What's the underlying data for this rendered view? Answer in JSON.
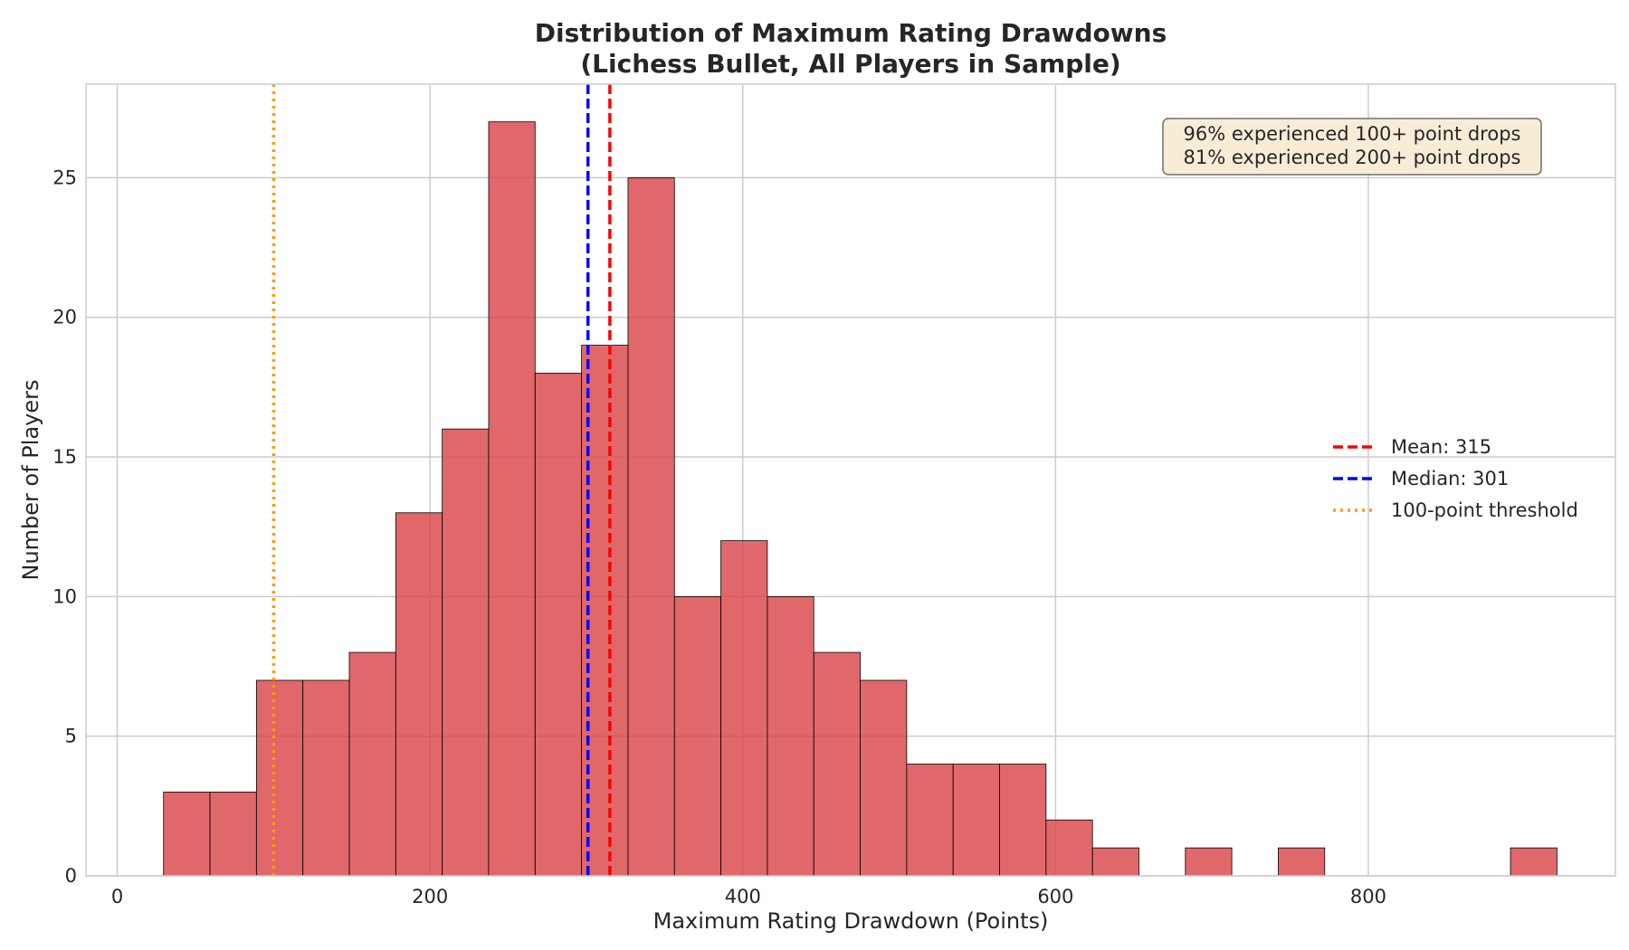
{
  "chart_data": {
    "type": "bar",
    "title_lines": [
      "Distribution of Maximum Rating Drawdowns",
      "(Lichess Bullet, All Players in Sample)"
    ],
    "xlabel": "Maximum Rating Drawdown (Points)",
    "ylabel": "Number of Players",
    "xlim": [
      -20,
      958
    ],
    "ylim": [
      0,
      28.35
    ],
    "xticks": [
      0,
      200,
      400,
      600,
      800
    ],
    "yticks": [
      0,
      5,
      10,
      15,
      20,
      25
    ],
    "grid": true,
    "bar_color": "#d9474a",
    "bar_edge_color": "#000000",
    "bins": [
      {
        "start": 29.6,
        "end": 59.3,
        "count": 3
      },
      {
        "start": 59.3,
        "end": 89.0,
        "count": 3
      },
      {
        "start": 89.0,
        "end": 118.7,
        "count": 7
      },
      {
        "start": 118.7,
        "end": 148.4,
        "count": 7
      },
      {
        "start": 148.4,
        "end": 178.1,
        "count": 8
      },
      {
        "start": 178.1,
        "end": 207.8,
        "count": 13
      },
      {
        "start": 207.8,
        "end": 237.5,
        "count": 16
      },
      {
        "start": 237.5,
        "end": 267.2,
        "count": 27
      },
      {
        "start": 267.2,
        "end": 296.9,
        "count": 18
      },
      {
        "start": 296.9,
        "end": 326.6,
        "count": 19
      },
      {
        "start": 326.6,
        "end": 356.3,
        "count": 25
      },
      {
        "start": 356.3,
        "end": 386.0,
        "count": 10
      },
      {
        "start": 386.0,
        "end": 415.7,
        "count": 12
      },
      {
        "start": 415.7,
        "end": 445.4,
        "count": 10
      },
      {
        "start": 445.4,
        "end": 475.1,
        "count": 8
      },
      {
        "start": 475.1,
        "end": 504.8,
        "count": 7
      },
      {
        "start": 504.8,
        "end": 534.5,
        "count": 4
      },
      {
        "start": 534.5,
        "end": 564.2,
        "count": 4
      },
      {
        "start": 564.2,
        "end": 593.9,
        "count": 4
      },
      {
        "start": 593.9,
        "end": 623.6,
        "count": 2
      },
      {
        "start": 623.6,
        "end": 653.3,
        "count": 1
      },
      {
        "start": 683.0,
        "end": 712.7,
        "count": 1
      },
      {
        "start": 742.4,
        "end": 772.1,
        "count": 1
      },
      {
        "start": 890.9,
        "end": 920.6,
        "count": 1
      }
    ],
    "reference_lines": [
      {
        "label": "Mean: 315",
        "x": 315,
        "color": "#ff0000",
        "style": "dashed"
      },
      {
        "label": "Median: 301",
        "x": 301,
        "color": "#0000ff",
        "style": "dashed"
      },
      {
        "label": "100-point threshold",
        "x": 100,
        "color": "#ff9900",
        "style": "dotted"
      }
    ],
    "legend_position": "center-right",
    "annotation_lines": [
      "96% experienced 100+ point drops",
      "81% experienced 200+ point drops"
    ],
    "annotation_position": "top-right",
    "annotation_bg": "#f7ecd6"
  }
}
